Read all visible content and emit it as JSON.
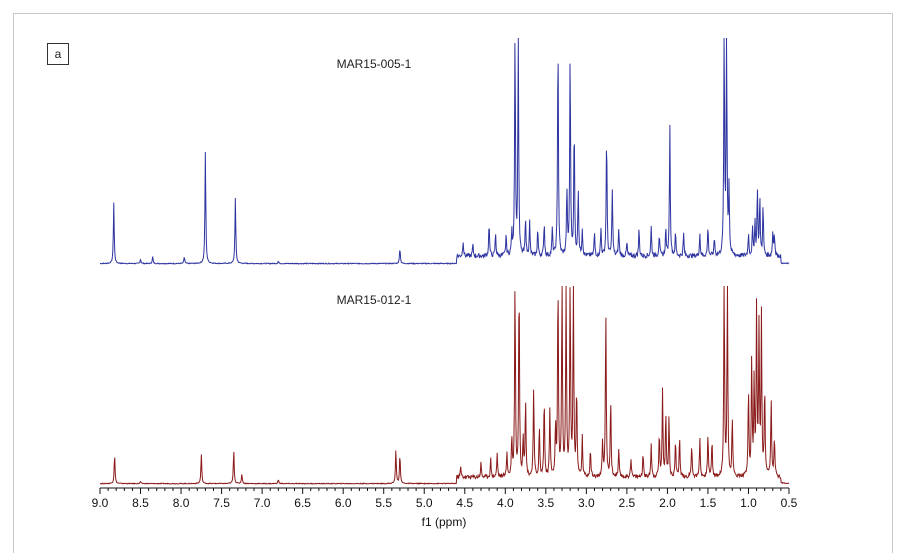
{
  "panel_label": "a",
  "chart_data": {
    "type": "line",
    "xlabel": "f1 (ppm)",
    "xlim": [
      9.0,
      0.5
    ],
    "x_ticks": [
      "9.0",
      "8.5",
      "8.0",
      "7.5",
      "7.0",
      "6.5",
      "6.0",
      "5.5",
      "5.0",
      "4.5",
      "4.0",
      "3.5",
      "3.0",
      "2.5",
      "2.0",
      "1.5",
      "1.0",
      "0.5"
    ],
    "grid": false,
    "series": [
      {
        "name": "MAR15-005-1",
        "color": "#2e35a0",
        "peaks": [
          [
            8.83,
            0.27
          ],
          [
            8.5,
            0.02
          ],
          [
            8.35,
            0.03
          ],
          [
            7.96,
            0.03
          ],
          [
            7.7,
            0.5
          ],
          [
            7.33,
            0.29
          ],
          [
            6.8,
            0.01
          ],
          [
            5.3,
            0.07
          ],
          [
            4.52,
            0.07
          ],
          [
            4.4,
            0.05
          ],
          [
            4.2,
            0.15
          ],
          [
            4.12,
            0.1
          ],
          [
            3.99,
            0.09
          ],
          [
            3.92,
            0.1
          ],
          [
            3.88,
            1.0
          ],
          [
            3.84,
            1.0
          ],
          [
            3.75,
            0.17
          ],
          [
            3.7,
            0.15
          ],
          [
            3.6,
            0.12
          ],
          [
            3.52,
            0.15
          ],
          [
            3.42,
            0.12
          ],
          [
            3.35,
            1.0
          ],
          [
            3.24,
            0.3
          ],
          [
            3.2,
            0.9
          ],
          [
            3.15,
            0.58
          ],
          [
            3.1,
            0.3
          ],
          [
            3.05,
            0.12
          ],
          [
            2.9,
            0.1
          ],
          [
            2.82,
            0.12
          ],
          [
            2.75,
            0.55
          ],
          [
            2.68,
            0.3
          ],
          [
            2.6,
            0.12
          ],
          [
            2.5,
            0.06
          ],
          [
            2.35,
            0.12
          ],
          [
            2.2,
            0.13
          ],
          [
            2.1,
            0.1
          ],
          [
            2.02,
            0.12
          ],
          [
            1.97,
            0.58
          ],
          [
            1.9,
            0.1
          ],
          [
            1.8,
            0.1
          ],
          [
            1.6,
            0.1
          ],
          [
            1.5,
            0.13
          ],
          [
            1.42,
            0.08
          ],
          [
            1.3,
            1.0
          ],
          [
            1.27,
            1.0
          ],
          [
            1.24,
            0.3
          ],
          [
            1.0,
            0.1
          ],
          [
            0.95,
            0.12
          ],
          [
            0.92,
            0.15
          ],
          [
            0.89,
            0.3
          ],
          [
            0.86,
            0.25
          ],
          [
            0.82,
            0.22
          ],
          [
            0.7,
            0.1
          ],
          [
            0.68,
            0.1
          ]
        ]
      },
      {
        "name": "MAR15-012-1",
        "color": "#8b1a1a",
        "peaks": [
          [
            8.82,
            0.15
          ],
          [
            8.5,
            0.01
          ],
          [
            7.75,
            0.15
          ],
          [
            7.35,
            0.17
          ],
          [
            7.25,
            0.05
          ],
          [
            6.8,
            0.02
          ],
          [
            5.35,
            0.17
          ],
          [
            5.3,
            0.15
          ],
          [
            4.55,
            0.05
          ],
          [
            4.3,
            0.07
          ],
          [
            4.18,
            0.09
          ],
          [
            4.1,
            0.12
          ],
          [
            3.98,
            0.13
          ],
          [
            3.92,
            0.2
          ],
          [
            3.88,
            1.0
          ],
          [
            3.83,
            1.0
          ],
          [
            3.78,
            0.2
          ],
          [
            3.75,
            0.4
          ],
          [
            3.65,
            0.45
          ],
          [
            3.58,
            0.25
          ],
          [
            3.52,
            0.4
          ],
          [
            3.45,
            0.35
          ],
          [
            3.38,
            0.25
          ],
          [
            3.35,
            1.0
          ],
          [
            3.3,
            1.0
          ],
          [
            3.25,
            1.0
          ],
          [
            3.2,
            1.0
          ],
          [
            3.16,
            1.0
          ],
          [
            3.12,
            0.45
          ],
          [
            3.05,
            0.2
          ],
          [
            2.95,
            0.15
          ],
          [
            2.8,
            0.17
          ],
          [
            2.76,
            0.85
          ],
          [
            2.7,
            0.4
          ],
          [
            2.6,
            0.13
          ],
          [
            2.45,
            0.1
          ],
          [
            2.3,
            0.12
          ],
          [
            2.2,
            0.17
          ],
          [
            2.1,
            0.22
          ],
          [
            2.06,
            0.43
          ],
          [
            2.02,
            0.33
          ],
          [
            1.98,
            0.3
          ],
          [
            1.9,
            0.18
          ],
          [
            1.85,
            0.2
          ],
          [
            1.7,
            0.17
          ],
          [
            1.6,
            0.2
          ],
          [
            1.5,
            0.22
          ],
          [
            1.45,
            0.18
          ],
          [
            1.3,
            1.0
          ],
          [
            1.26,
            1.0
          ],
          [
            1.2,
            0.3
          ],
          [
            1.0,
            0.45
          ],
          [
            0.96,
            0.6
          ],
          [
            0.93,
            0.48
          ],
          [
            0.9,
            0.85
          ],
          [
            0.87,
            0.75
          ],
          [
            0.84,
            0.8
          ],
          [
            0.8,
            0.45
          ],
          [
            0.72,
            0.4
          ],
          [
            0.68,
            0.2
          ]
        ]
      }
    ]
  }
}
